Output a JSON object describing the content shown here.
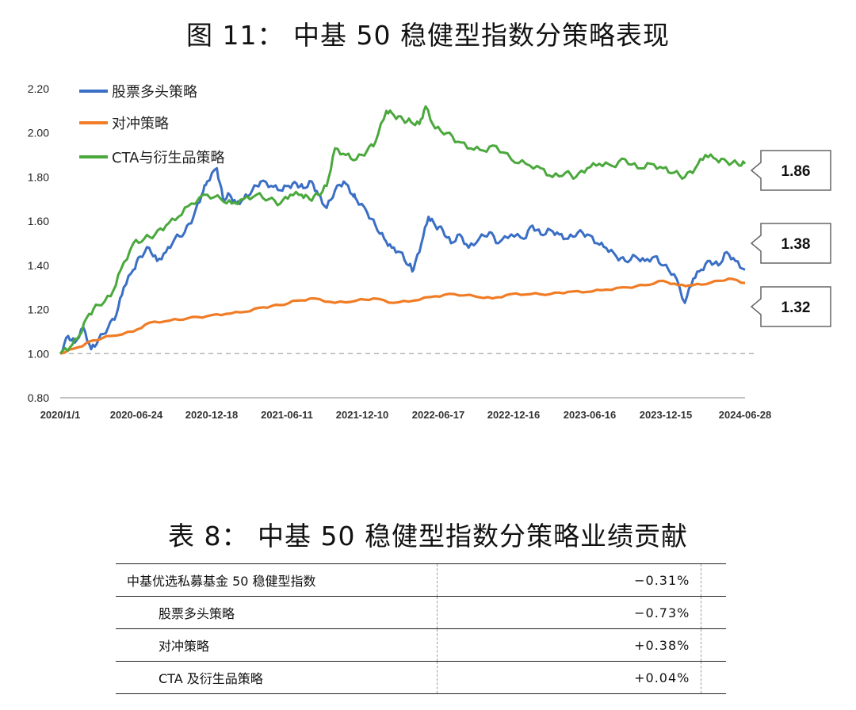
{
  "figure_title": "图 11： 中基 50 稳健型指数分策略表现",
  "table_title": "表 8： 中基 50 稳健型指数分策略业绩贡献",
  "colors": {
    "stock": "#3a6fc4",
    "hedge": "#f07c26",
    "cta": "#4aa83c",
    "baseline": "#b5b5b5"
  },
  "chart_data": {
    "type": "line",
    "title": "",
    "xlabel": "",
    "ylabel": "",
    "ylim": [
      0.8,
      2.2
    ],
    "yticks": [
      0.8,
      1.0,
      1.2,
      1.4,
      1.6,
      1.8,
      2.0,
      2.2
    ],
    "ytick_labels": [
      "0.80",
      "1.00",
      "1.20",
      "1.40",
      "1.60",
      "1.80",
      "2.00",
      "2.20"
    ],
    "xticks": [
      "2020/1/1",
      "2020-06-24",
      "2020-12-18",
      "2021-06-11",
      "2021-12-10",
      "2022-06-17",
      "2022-12-16",
      "2023-06-16",
      "2023-12-15",
      "2024-06-28"
    ],
    "baseline": 1.0,
    "grid": false,
    "legend_position": "top-left",
    "series": [
      {
        "name": "股票多头策略",
        "color_key": "stock",
        "x": [
          "2020-01-01",
          "2020-01-20",
          "2020-02-05",
          "2020-02-25",
          "2020-03-15",
          "2020-04-01",
          "2020-04-25",
          "2020-05-15",
          "2020-06-01",
          "2020-06-24",
          "2020-07-10",
          "2020-08-01",
          "2020-08-20",
          "2020-09-10",
          "2020-10-01",
          "2020-10-25",
          "2020-11-15",
          "2020-12-05",
          "2020-12-18",
          "2021-01-10",
          "2021-01-25",
          "2021-02-10",
          "2021-02-25",
          "2021-03-15",
          "2021-04-05",
          "2021-04-25",
          "2021-05-20",
          "2021-06-11",
          "2021-07-01",
          "2021-07-20",
          "2021-08-05",
          "2021-08-25",
          "2021-09-10",
          "2021-09-30",
          "2021-10-20",
          "2021-11-10",
          "2021-12-01",
          "2021-12-10",
          "2022-01-05",
          "2022-01-25",
          "2022-02-15",
          "2022-03-05",
          "2022-03-25",
          "2022-04-15",
          "2022-04-26",
          "2022-05-15",
          "2022-06-01",
          "2022-06-17",
          "2022-07-05",
          "2022-07-25",
          "2022-08-15",
          "2022-09-05",
          "2022-09-30",
          "2022-10-25",
          "2022-11-15",
          "2022-12-16",
          "2023-01-15",
          "2023-02-05",
          "2023-02-25",
          "2023-03-20",
          "2023-04-10",
          "2023-05-01",
          "2023-05-25",
          "2023-06-16",
          "2023-07-10",
          "2023-07-31",
          "2023-08-25",
          "2023-09-15",
          "2023-10-10",
          "2023-11-01",
          "2023-11-25",
          "2023-12-15",
          "2024-01-10",
          "2024-02-05",
          "2024-02-25",
          "2024-03-15",
          "2024-04-05",
          "2024-04-25",
          "2024-05-15",
          "2024-06-05",
          "2024-06-28"
        ],
        "y": [
          1.0,
          1.08,
          1.05,
          1.12,
          1.02,
          1.06,
          1.12,
          1.18,
          1.3,
          1.38,
          1.44,
          1.48,
          1.42,
          1.46,
          1.52,
          1.55,
          1.62,
          1.72,
          1.78,
          1.84,
          1.7,
          1.72,
          1.68,
          1.7,
          1.74,
          1.78,
          1.76,
          1.74,
          1.76,
          1.77,
          1.75,
          1.78,
          1.72,
          1.66,
          1.74,
          1.78,
          1.72,
          1.7,
          1.64,
          1.58,
          1.52,
          1.48,
          1.46,
          1.4,
          1.38,
          1.5,
          1.62,
          1.58,
          1.56,
          1.5,
          1.54,
          1.48,
          1.52,
          1.55,
          1.5,
          1.54,
          1.52,
          1.58,
          1.54,
          1.56,
          1.54,
          1.52,
          1.55,
          1.54,
          1.5,
          1.48,
          1.44,
          1.42,
          1.44,
          1.42,
          1.44,
          1.4,
          1.36,
          1.23,
          1.34,
          1.38,
          1.42,
          1.4,
          1.46,
          1.42,
          1.38
        ]
      },
      {
        "name": "对冲策略",
        "color_key": "hedge",
        "x": [
          "2020-01-01",
          "2020-02-15",
          "2020-03-20",
          "2020-05-01",
          "2020-06-24",
          "2020-08-01",
          "2020-09-20",
          "2020-11-01",
          "2020-12-18",
          "2021-02-01",
          "2021-03-20",
          "2021-05-01",
          "2021-06-11",
          "2021-07-20",
          "2021-09-01",
          "2021-10-20",
          "2021-12-10",
          "2022-01-20",
          "2022-03-10",
          "2022-04-26",
          "2022-06-17",
          "2022-08-01",
          "2022-09-20",
          "2022-11-01",
          "2022-12-16",
          "2023-02-01",
          "2023-03-20",
          "2023-05-01",
          "2023-06-16",
          "2023-08-01",
          "2023-09-20",
          "2023-11-01",
          "2023-12-15",
          "2024-01-20",
          "2024-02-25",
          "2024-04-05",
          "2024-05-20",
          "2024-06-28"
        ],
        "y": [
          1.0,
          1.03,
          1.06,
          1.08,
          1.1,
          1.14,
          1.15,
          1.16,
          1.17,
          1.18,
          1.19,
          1.21,
          1.22,
          1.24,
          1.25,
          1.23,
          1.24,
          1.25,
          1.23,
          1.24,
          1.26,
          1.27,
          1.26,
          1.25,
          1.27,
          1.27,
          1.27,
          1.28,
          1.28,
          1.29,
          1.3,
          1.31,
          1.33,
          1.31,
          1.31,
          1.32,
          1.34,
          1.32
        ]
      },
      {
        "name": "CTA与衍生品策略",
        "color_key": "cta",
        "x": [
          "2020-01-01",
          "2020-01-25",
          "2020-02-15",
          "2020-03-10",
          "2020-04-01",
          "2020-05-01",
          "2020-05-25",
          "2020-06-24",
          "2020-07-20",
          "2020-08-15",
          "2020-09-10",
          "2020-10-10",
          "2020-11-10",
          "2020-12-18",
          "2021-01-20",
          "2021-02-15",
          "2021-03-15",
          "2021-04-15",
          "2021-05-15",
          "2021-06-11",
          "2021-07-05",
          "2021-08-01",
          "2021-08-20",
          "2021-09-10",
          "2021-09-30",
          "2021-10-20",
          "2021-11-15",
          "2021-12-10",
          "2022-01-05",
          "2022-01-25",
          "2022-02-20",
          "2022-03-10",
          "2022-04-01",
          "2022-04-20",
          "2022-05-10",
          "2022-05-25",
          "2022-06-17",
          "2022-07-15",
          "2022-08-10",
          "2022-09-10",
          "2022-10-10",
          "2022-11-10",
          "2022-12-16",
          "2023-01-20",
          "2023-02-25",
          "2023-03-25",
          "2023-04-25",
          "2023-05-20",
          "2023-06-16",
          "2023-07-15",
          "2023-08-15",
          "2023-09-15",
          "2023-10-15",
          "2023-11-15",
          "2023-12-15",
          "2024-01-10",
          "2024-02-05",
          "2024-03-01",
          "2024-03-25",
          "2024-04-20",
          "2024-05-15",
          "2024-06-10",
          "2024-06-28"
        ],
        "y": [
          1.0,
          1.03,
          1.08,
          1.18,
          1.22,
          1.26,
          1.38,
          1.5,
          1.52,
          1.54,
          1.58,
          1.62,
          1.68,
          1.72,
          1.7,
          1.68,
          1.7,
          1.72,
          1.7,
          1.68,
          1.72,
          1.72,
          1.7,
          1.72,
          1.76,
          1.93,
          1.9,
          1.88,
          1.92,
          1.96,
          2.1,
          2.08,
          2.06,
          2.05,
          2.04,
          2.12,
          2.02,
          2.0,
          1.96,
          1.93,
          1.92,
          1.94,
          1.88,
          1.86,
          1.84,
          1.8,
          1.82,
          1.8,
          1.84,
          1.86,
          1.85,
          1.88,
          1.84,
          1.86,
          1.84,
          1.82,
          1.8,
          1.84,
          1.9,
          1.88,
          1.87,
          1.86,
          1.86
        ]
      }
    ],
    "callouts": [
      {
        "label": "1.86",
        "value": 1.86,
        "series_index": 2
      },
      {
        "label": "1.38",
        "value": 1.38,
        "series_index": 0
      },
      {
        "label": "1.32",
        "value": 1.32,
        "series_index": 1
      }
    ]
  },
  "table": {
    "rows": [
      {
        "name": "中基优选私募基金 50 稳健型指数",
        "value": "−0.31%",
        "indent": false
      },
      {
        "name": "股票多头策略",
        "value": "−0.73%",
        "indent": true
      },
      {
        "name": "对冲策略",
        "value": "+0.38%",
        "indent": true
      },
      {
        "name": "CTA 及衍生品策略",
        "value": "+0.04%",
        "indent": true
      }
    ]
  }
}
